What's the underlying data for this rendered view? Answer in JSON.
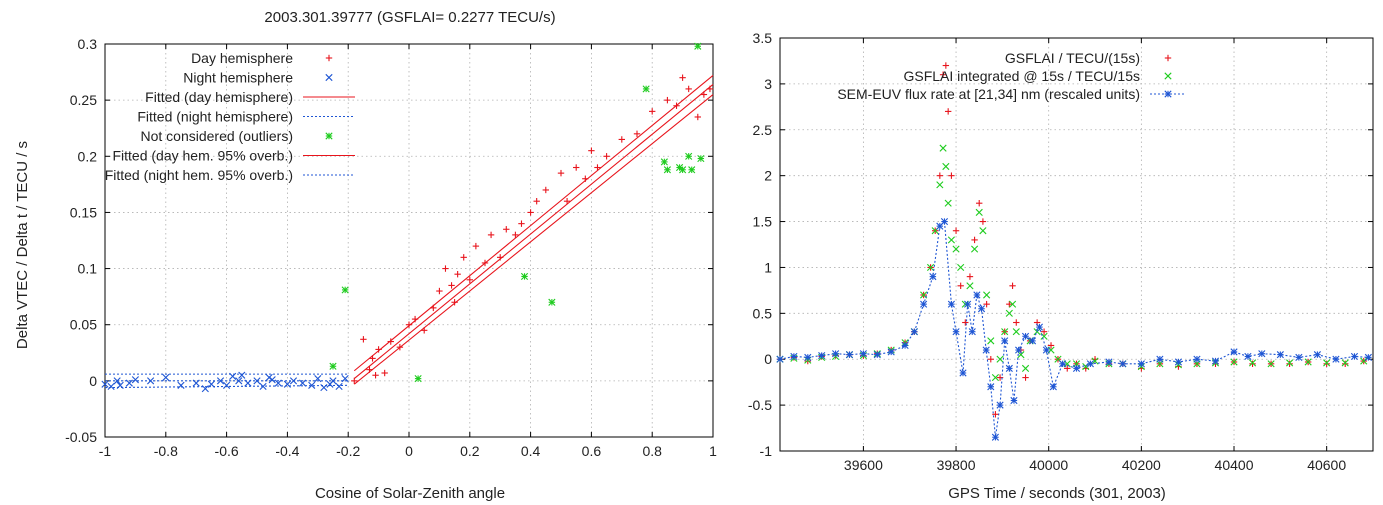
{
  "chart_data": [
    {
      "type": "scatter",
      "title": "2003.301.39777 (GSFLAI= 0.2277 TECU/s)",
      "xlabel": "Cosine of Solar-Zenith angle",
      "ylabel": "Delta VTEC / Delta t  / TECU / s",
      "xlim": [
        -1,
        1
      ],
      "ylim": [
        -0.05,
        0.3
      ],
      "x_ticks": [
        "-1",
        "-0.8",
        "-0.6",
        "-0.4",
        "-0.2",
        "0",
        "0.2",
        "0.4",
        "0.6",
        "0.8",
        "1"
      ],
      "y_ticks": [
        "-0.05",
        "0",
        "0.05",
        "0.1",
        "0.15",
        "0.2",
        "0.25",
        "0.3"
      ],
      "grid": true,
      "legend_position": "top-left",
      "series": [
        {
          "name": "Day hemisphere",
          "kind": "points",
          "marker": "plus",
          "color": "#e8141c",
          "x": [
            -0.18,
            -0.15,
            -0.13,
            -0.12,
            -0.11,
            -0.1,
            -0.08,
            -0.06,
            -0.03,
            0.0,
            0.02,
            0.05,
            0.08,
            0.1,
            0.12,
            0.14,
            0.15,
            0.16,
            0.18,
            0.2,
            0.22,
            0.25,
            0.27,
            0.3,
            0.32,
            0.35,
            0.37,
            0.4,
            0.42,
            0.45,
            0.5,
            0.52,
            0.55,
            0.58,
            0.6,
            0.62,
            0.65,
            0.7,
            0.75,
            0.8,
            0.85,
            0.88,
            0.9,
            0.92,
            0.95,
            0.97,
            0.99
          ],
          "y": [
            0.0,
            0.037,
            0.01,
            0.02,
            0.005,
            0.028,
            0.007,
            0.035,
            0.03,
            0.05,
            0.055,
            0.045,
            0.065,
            0.08,
            0.1,
            0.085,
            0.07,
            0.095,
            0.11,
            0.09,
            0.12,
            0.105,
            0.13,
            0.11,
            0.135,
            0.13,
            0.14,
            0.15,
            0.16,
            0.17,
            0.185,
            0.16,
            0.19,
            0.18,
            0.205,
            0.19,
            0.2,
            0.215,
            0.22,
            0.24,
            0.25,
            0.245,
            0.27,
            0.26,
            0.235,
            0.255,
            0.26
          ]
        },
        {
          "name": "Night hemisphere",
          "kind": "points",
          "marker": "x",
          "color": "#1f56d4",
          "x": [
            -1.0,
            -0.98,
            -0.96,
            -0.95,
            -0.92,
            -0.9,
            -0.85,
            -0.8,
            -0.75,
            -0.7,
            -0.67,
            -0.65,
            -0.62,
            -0.6,
            -0.58,
            -0.56,
            -0.55,
            -0.53,
            -0.5,
            -0.48,
            -0.46,
            -0.45,
            -0.43,
            -0.4,
            -0.38,
            -0.35,
            -0.32,
            -0.3,
            -0.28,
            -0.26,
            -0.25,
            -0.23,
            -0.21
          ],
          "y": [
            -0.003,
            -0.005,
            0.0,
            -0.004,
            -0.002,
            0.001,
            0.0,
            0.003,
            -0.004,
            -0.002,
            -0.007,
            -0.003,
            0.0,
            -0.004,
            0.004,
            0.0,
            0.005,
            -0.002,
            0.0,
            -0.005,
            0.003,
            0.001,
            -0.002,
            -0.003,
            0.0,
            -0.002,
            -0.004,
            0.002,
            -0.006,
            -0.003,
            0.0,
            -0.005,
            0.002
          ]
        },
        {
          "name": "Fitted (day hemisphere)",
          "kind": "line",
          "style": "solid",
          "color": "#e8141c",
          "x": [
            -0.18,
            1.0
          ],
          "y": [
            0.002,
            0.264
          ]
        },
        {
          "name": "Fitted (night hemisphere)",
          "kind": "line",
          "style": "dotted",
          "color": "#1f56d4",
          "x": [
            -1.0,
            -0.2
          ],
          "y": [
            0.0,
            0.0
          ]
        },
        {
          "name": "Not considered (outliers)",
          "kind": "points",
          "marker": "star",
          "color": "#1fcc1f",
          "x": [
            -0.25,
            -0.21,
            0.03,
            0.38,
            0.47,
            0.78,
            0.84,
            0.85,
            0.89,
            0.9,
            0.92,
            0.93,
            0.95,
            0.96
          ],
          "y": [
            0.013,
            0.081,
            0.002,
            0.093,
            0.07,
            0.26,
            0.195,
            0.188,
            0.19,
            0.188,
            0.2,
            0.188,
            0.298,
            0.198
          ]
        },
        {
          "name": "Fitted (day hem. 95% overb.)",
          "kind": "band",
          "style": "solid",
          "color": "#e8141c",
          "x": [
            -0.18,
            1.0
          ],
          "lower": [
            -0.003,
            0.255
          ],
          "upper": [
            0.009,
            0.272
          ]
        },
        {
          "name": "Fitted (night hem. 95% overb.)",
          "kind": "band",
          "style": "dotted",
          "color": "#1f56d4",
          "x": [
            -1.0,
            -0.2
          ],
          "lower": [
            -0.006,
            -0.004
          ],
          "upper": [
            0.006,
            0.006
          ]
        }
      ]
    },
    {
      "type": "line",
      "title": "",
      "xlabel": "GPS Time / seconds (301, 2003)",
      "ylabel": "",
      "xlim": [
        39420,
        40700
      ],
      "ylim": [
        -1,
        3.5
      ],
      "x_ticks": [
        "39600",
        "39800",
        "40000",
        "40200",
        "40400",
        "40600"
      ],
      "y_ticks": [
        "-1",
        "-0.5",
        "0",
        "0.5",
        "1",
        "1.5",
        "2",
        "2.5",
        "3",
        "3.5"
      ],
      "grid": true,
      "legend_position": "top-right",
      "series": [
        {
          "name": "GSFLAI / TECU/(15s)",
          "kind": "points",
          "marker": "plus",
          "color": "#e8141c",
          "x": [
            39420,
            39450,
            39480,
            39510,
            39540,
            39570,
            39600,
            39630,
            39660,
            39690,
            39710,
            39730,
            39745,
            39755,
            39765,
            39772,
            39778,
            39783,
            39790,
            39800,
            39810,
            39820,
            39830,
            39840,
            39850,
            39858,
            39866,
            39875,
            39885,
            39895,
            39905,
            39915,
            39922,
            39930,
            39940,
            39950,
            39960,
            39975,
            39990,
            40005,
            40020,
            40040,
            40060,
            40080,
            40100,
            40130,
            40160,
            40200,
            40240,
            40280,
            40320,
            40360,
            40400,
            40440,
            40480,
            40520,
            40560,
            40600,
            40640,
            40680
          ],
          "y": [
            0.0,
            0.02,
            -0.02,
            0.03,
            0.04,
            0.05,
            0.04,
            0.06,
            0.1,
            0.18,
            0.3,
            0.7,
            1.0,
            1.4,
            2.0,
            3.1,
            3.2,
            2.7,
            2.0,
            1.4,
            0.8,
            0.4,
            0.9,
            1.3,
            1.7,
            1.5,
            0.6,
            0.0,
            -0.6,
            -0.2,
            0.3,
            0.6,
            0.8,
            0.4,
            0.1,
            -0.2,
            0.2,
            0.4,
            0.3,
            0.15,
            0.0,
            -0.1,
            -0.05,
            -0.1,
            0.0,
            -0.05,
            -0.05,
            -0.1,
            -0.05,
            -0.08,
            -0.05,
            -0.05,
            -0.03,
            -0.05,
            -0.05,
            -0.05,
            -0.03,
            -0.05,
            -0.05,
            -0.02
          ]
        },
        {
          "name": "GSFLAI integrated @ 15s / TECU/15s",
          "kind": "points",
          "marker": "x",
          "color": "#1fcc1f",
          "x": [
            39420,
            39450,
            39480,
            39510,
            39540,
            39570,
            39600,
            39630,
            39660,
            39690,
            39710,
            39730,
            39745,
            39755,
            39765,
            39772,
            39778,
            39783,
            39790,
            39800,
            39810,
            39820,
            39830,
            39840,
            39850,
            39858,
            39866,
            39875,
            39885,
            39895,
            39905,
            39915,
            39922,
            39930,
            39940,
            39950,
            39960,
            39975,
            39990,
            40005,
            40020,
            40040,
            40060,
            40080,
            40100,
            40130,
            40160,
            40200,
            40240,
            40280,
            40320,
            40360,
            40400,
            40440,
            40480,
            40520,
            40560,
            40600,
            40640,
            40680
          ],
          "y": [
            0.0,
            0.01,
            -0.01,
            0.02,
            0.03,
            0.05,
            0.04,
            0.06,
            0.1,
            0.18,
            0.3,
            0.7,
            1.0,
            1.4,
            1.9,
            2.3,
            2.1,
            1.7,
            1.3,
            1.2,
            1.0,
            0.6,
            0.8,
            1.2,
            1.6,
            1.4,
            0.7,
            0.2,
            -0.2,
            0.0,
            0.3,
            0.5,
            0.6,
            0.3,
            0.05,
            -0.1,
            0.2,
            0.3,
            0.25,
            0.1,
            0.0,
            -0.05,
            -0.05,
            -0.08,
            -0.02,
            -0.05,
            -0.05,
            -0.08,
            -0.05,
            -0.06,
            -0.05,
            -0.04,
            -0.03,
            -0.04,
            -0.05,
            -0.04,
            -0.03,
            -0.04,
            -0.04,
            -0.02
          ]
        },
        {
          "name": "SEM-EUV flux rate at [21,34] nm (rescaled units)",
          "kind": "line",
          "marker": "star",
          "style": "dotted",
          "color": "#1f56d4",
          "x": [
            39420,
            39450,
            39480,
            39510,
            39540,
            39570,
            39600,
            39630,
            39660,
            39690,
            39710,
            39730,
            39750,
            39765,
            39775,
            39790,
            39800,
            39815,
            39825,
            39835,
            39845,
            39855,
            39865,
            39875,
            39885,
            39895,
            39905,
            39915,
            39925,
            39935,
            39950,
            39965,
            39980,
            39995,
            40010,
            40030,
            40060,
            40090,
            40130,
            40160,
            40200,
            40240,
            40280,
            40320,
            40360,
            40400,
            40430,
            40460,
            40500,
            40540,
            40580,
            40620,
            40660,
            40690
          ],
          "y": [
            0.0,
            0.03,
            0.02,
            0.04,
            0.06,
            0.05,
            0.06,
            0.05,
            0.08,
            0.15,
            0.3,
            0.6,
            0.9,
            1.45,
            1.5,
            0.6,
            0.3,
            -0.15,
            0.6,
            0.3,
            0.7,
            0.55,
            0.1,
            -0.3,
            -0.85,
            -0.5,
            0.2,
            -0.1,
            -0.45,
            0.1,
            0.25,
            0.2,
            0.35,
            0.1,
            -0.3,
            -0.05,
            -0.1,
            -0.05,
            -0.03,
            -0.05,
            -0.05,
            0.0,
            -0.03,
            0.0,
            -0.02,
            0.08,
            0.03,
            0.06,
            0.05,
            0.02,
            0.05,
            0.0,
            0.03,
            0.02
          ]
        }
      ]
    }
  ]
}
